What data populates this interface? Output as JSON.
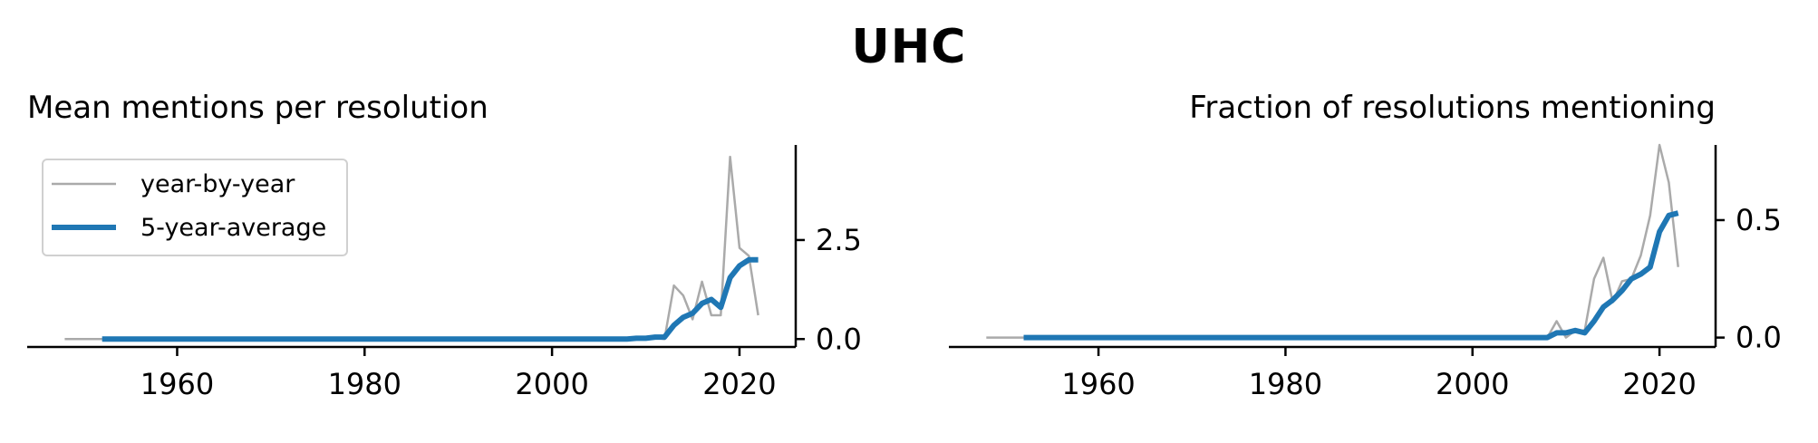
{
  "suptitle": "UHC",
  "colors": {
    "yearly": "#aaaaaa",
    "average": "#1f77b4",
    "axis": "#000000"
  },
  "chart_data": [
    {
      "type": "line",
      "title": "Mean mentions per resolution",
      "xlabel": "",
      "ylabel": "",
      "xlim": [
        1944,
        2026
      ],
      "ylim": [
        -0.2,
        4.9
      ],
      "xticks": [
        1960,
        1980,
        2000,
        2020
      ],
      "yticks": [
        0.0,
        2.5
      ],
      "ytick_labels": [
        "0.0",
        "2.5"
      ],
      "grid": false,
      "y_axis_side": "right",
      "legend": {
        "placement": "top-left",
        "entries": [
          "year-by-year",
          "5-year-average"
        ]
      },
      "series": [
        {
          "name": "year-by-year",
          "x": [
            1948,
            1950,
            1952,
            1960,
            1970,
            1980,
            1990,
            2000,
            2005,
            2008,
            2009,
            2010,
            2011,
            2012,
            2013,
            2014,
            2015,
            2016,
            2017,
            2018,
            2019,
            2020,
            2021,
            2022
          ],
          "y": [
            0.0,
            0.0,
            0.0,
            0.0,
            0.0,
            0.0,
            0.0,
            0.0,
            0.0,
            0.0,
            0.0,
            0.05,
            0.03,
            0.0,
            1.35,
            1.1,
            0.5,
            1.45,
            0.6,
            0.6,
            4.6,
            2.3,
            2.1,
            0.6
          ]
        },
        {
          "name": "5-year-average",
          "x": [
            1952,
            1960,
            1970,
            1980,
            1990,
            2000,
            2008,
            2009,
            2010,
            2011,
            2012,
            2013,
            2014,
            2015,
            2016,
            2017,
            2018,
            2019,
            2020,
            2021,
            2022
          ],
          "y": [
            0.0,
            0.0,
            0.0,
            0.0,
            0.0,
            0.0,
            0.0,
            0.02,
            0.02,
            0.05,
            0.05,
            0.35,
            0.55,
            0.65,
            0.9,
            1.0,
            0.8,
            1.55,
            1.85,
            2.0,
            2.0
          ]
        }
      ]
    },
    {
      "type": "line",
      "title": "Fraction of resolutions mentioning",
      "xlabel": "",
      "ylabel": "",
      "xlim": [
        1944,
        2026
      ],
      "ylim": [
        -0.04,
        0.82
      ],
      "xticks": [
        1960,
        1980,
        2000,
        2020
      ],
      "yticks": [
        0.0,
        0.5
      ],
      "ytick_labels": [
        "0.0",
        "0.5"
      ],
      "grid": false,
      "y_axis_side": "right",
      "series": [
        {
          "name": "year-by-year",
          "x": [
            1948,
            1950,
            1952,
            1960,
            1970,
            1980,
            1990,
            2000,
            2005,
            2008,
            2009,
            2010,
            2011,
            2012,
            2013,
            2014,
            2015,
            2016,
            2017,
            2018,
            2019,
            2020,
            2021,
            2022
          ],
          "y": [
            0.0,
            0.0,
            0.0,
            0.0,
            0.0,
            0.0,
            0.0,
            0.0,
            0.0,
            0.0,
            0.07,
            0.0,
            0.03,
            0.03,
            0.25,
            0.34,
            0.15,
            0.24,
            0.25,
            0.35,
            0.52,
            0.82,
            0.66,
            0.3
          ]
        },
        {
          "name": "5-year-average",
          "x": [
            1952,
            1960,
            1970,
            1980,
            1990,
            2000,
            2008,
            2009,
            2010,
            2011,
            2012,
            2013,
            2014,
            2015,
            2016,
            2017,
            2018,
            2019,
            2020,
            2021,
            2022
          ],
          "y": [
            0.0,
            0.0,
            0.0,
            0.0,
            0.0,
            0.0,
            0.0,
            0.02,
            0.02,
            0.03,
            0.02,
            0.07,
            0.13,
            0.16,
            0.2,
            0.25,
            0.27,
            0.3,
            0.45,
            0.52,
            0.53
          ]
        }
      ]
    }
  ]
}
